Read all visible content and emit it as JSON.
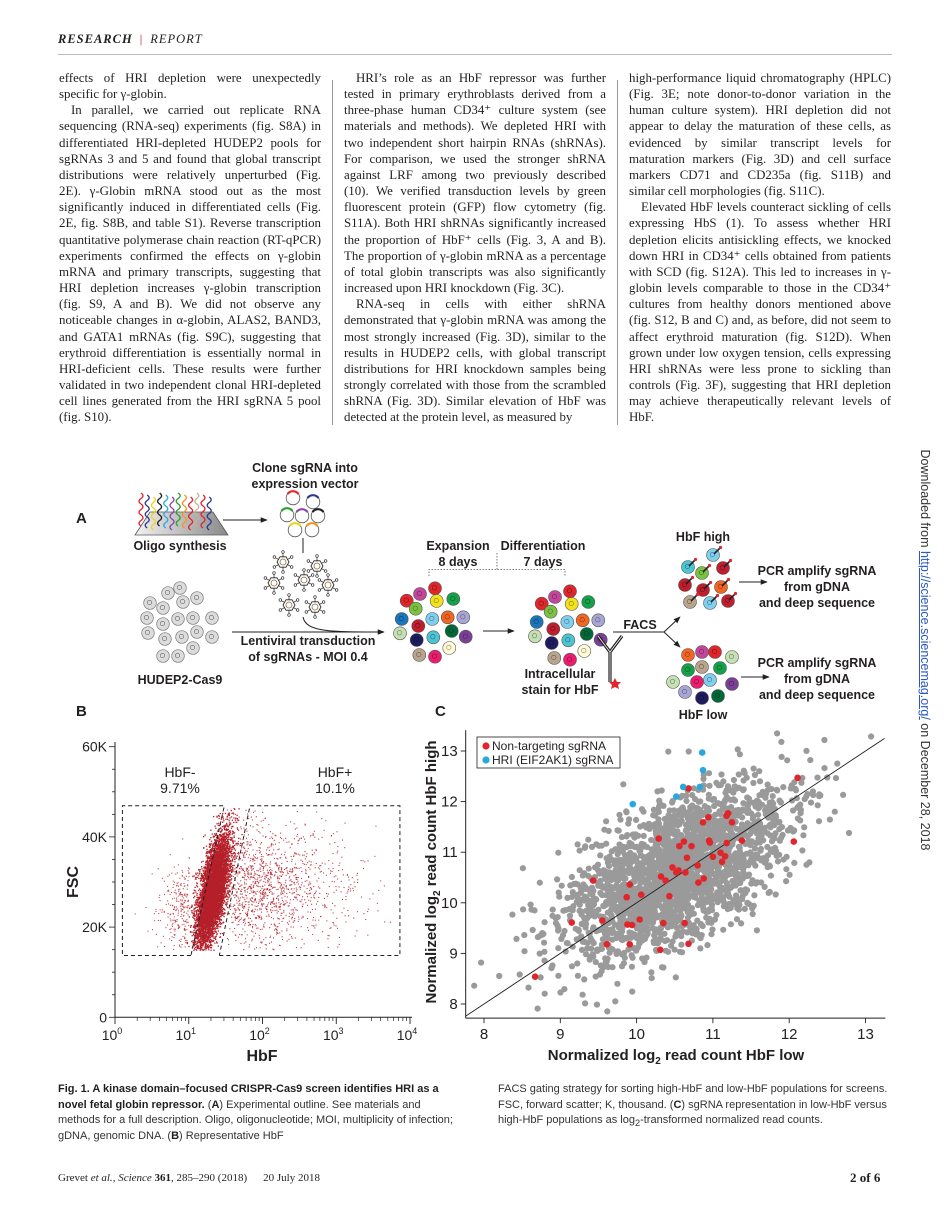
{
  "header": {
    "section": "RESEARCH",
    "separator": "|",
    "type": "REPORT"
  },
  "body": {
    "col1": [
      "effects of HRI depletion were unexpectedly specific for γ-globin.",
      "In parallel, we carried out replicate RNA sequencing (RNA-seq) experiments (fig. S8A) in differentiated HRI-depleted HUDEP2 pools for sgRNAs 3 and 5 and found that global transcript distributions were relatively unperturbed (Fig. 2E). γ-Globin mRNA stood out as the most significantly induced in differentiated cells (Fig. 2E, fig. S8B, and table S1). Reverse transcription quantitative polymerase chain reaction (RT-qPCR) experiments confirmed the effects on γ-globin mRNA and primary transcripts, suggesting that HRI depletion increases γ-globin transcription (fig. S9, A and B). We did not observe any noticeable changes in α-globin, ALAS2, BAND3, and GATA1 mRNAs (fig. S9C), suggesting that erythroid differentiation is essentially normal in HRI-deficient cells. These results were further validated in two independent clonal HRI-depleted cell lines generated from the HRI sgRNA 5 pool (fig. S10)."
    ],
    "col2": [
      "HRI’s role as an HbF repressor was further tested in primary erythroblasts derived from a three-phase human CD34⁺ culture system (see materials and methods). We depleted HRI with two independent short hairpin RNAs (shRNAs). For comparison, we used the stronger shRNA against LRF among two previously described (10). We verified transduction levels by green fluorescent protein (GFP) flow cytometry (fig. S11A). Both HRI shRNAs significantly increased the proportion of HbF⁺ cells (Fig. 3, A and B). The proportion of γ-globin mRNA as a percentage of total globin transcripts was also significantly increased upon HRI knockdown (Fig. 3C).",
      "RNA-seq in cells with either shRNA demonstrated that γ-globin mRNA was among the most strongly increased (Fig. 3D), similar to the results in HUDEP2 cells, with global transcript distributions for HRI knockdown samples being strongly correlated with those from the scrambled shRNA (Fig. 3D). Similar elevation of HbF was detected at the protein level, as measured by"
    ],
    "col3": [
      "high-performance liquid chromatography (HPLC) (Fig. 3E; note donor-to-donor variation in the human culture system). HRI depletion did not appear to delay the maturation of these cells, as evidenced by similar transcript levels for maturation markers (Fig. 3D) and cell surface markers CD71 and CD235a (fig. S11B) and similar cell morphologies (fig. S11C).",
      "Elevated HbF levels counteract sickling of cells expressing HbS (1). To assess whether HRI depletion elicits antisickling effects, we knocked down HRI in CD34⁺ cells obtained from patients with SCD (fig. S12A). This led to increases in γ-globin levels comparable to those in the CD34⁺ cultures from healthy donors mentioned above (fig. S12, B and C) and, as before, did not seem to affect erythroid maturation (fig. S12D). When grown under low oxygen tension, cells expressing HRI shRNAs were less prone to sickling than controls (Fig. 3F), suggesting that HRI depletion may achieve therapeutically relevant levels of HbF."
    ]
  },
  "side_note": {
    "prefix": "Downloaded from ",
    "url": "http://science.sciencemag.org/",
    "suffix": " on December 28, 2018"
  },
  "figure": {
    "panel_a": {
      "label": "A",
      "oligo": "Oligo synthesis",
      "clone_line1": "Clone sgRNA into",
      "clone_line2": "expression vector",
      "cells": "HUDEP2-Cas9",
      "transduction_line1": "Lentiviral transduction",
      "transduction_line2": "of sgRNAs - MOI 0.4",
      "expansion_line1": "Expansion",
      "expansion_line2": "8 days",
      "differentiation_line1": "Differentiation",
      "differentiation_line2": "7 days",
      "stain_line1": "Intracellular",
      "stain_line2": "stain for HbF",
      "facs": "FACS",
      "hbf_high": "HbF high",
      "hbf_low": "HbF low",
      "pcr_line1": "PCR amplify sgRNA",
      "pcr_line2": "from gDNA",
      "pcr_line3": "and deep sequence"
    },
    "panel_b_label": "B",
    "panel_c_label": "C"
  },
  "chart_data": [
    {
      "panel": "B",
      "type": "scatter",
      "xlabel": "HbF",
      "ylabel": "FSC",
      "x_scale": "log",
      "xlim": [
        1,
        10000
      ],
      "ylim": [
        0,
        60000
      ],
      "x_ticks": [
        {
          "base": "10",
          "exp": "0"
        },
        {
          "base": "10",
          "exp": "1"
        },
        {
          "base": "10",
          "exp": "2"
        },
        {
          "base": "10",
          "exp": "3"
        },
        {
          "base": "10",
          "exp": "4"
        }
      ],
      "y_ticks": [
        "0",
        "20K",
        "40K",
        "60K"
      ],
      "y_tick_values": [
        0,
        20000,
        40000,
        60000
      ],
      "point_color": "#b5202a",
      "gates": [
        {
          "name": "HbF-",
          "percent": "9.71%",
          "x_left": 1.26,
          "x_right_bottom": 10.7,
          "x_right_top": 30.4,
          "y_bottom": 13700,
          "y_top": 46900
        },
        {
          "name": "HbF+",
          "percent": "10.1%",
          "x_left_bottom": 26,
          "x_left_top": 67.7,
          "x_right": 7300,
          "y_bottom": 13700,
          "y_top": 46900
        }
      ]
    },
    {
      "panel": "C",
      "type": "scatter",
      "xlabel_prefix": "Normalized log",
      "xlabel_sub": "2",
      "xlabel_suffix": " read count HbF low",
      "ylabel_prefix": "Normalized log",
      "ylabel_sub": "2",
      "ylabel_suffix": " read count HbF high",
      "xlim": [
        7.76,
        13.26
      ],
      "ylim": [
        7.72,
        13.41
      ],
      "x_ticks": [
        "8",
        "9",
        "10",
        "11",
        "12",
        "13"
      ],
      "y_ticks": [
        "8",
        "9",
        "10",
        "11",
        "12",
        "13"
      ],
      "reference_line": "y = x",
      "legend_position": "top-left",
      "background_color": "#9a9a9a",
      "series": [
        {
          "name": "Non-targeting sgRNA",
          "color": "#e0262b",
          "points": [
            [
              12.11,
              12.47
            ],
            [
              10.68,
              12.26
            ],
            [
              10.94,
              11.69
            ],
            [
              11.2,
              11.77
            ],
            [
              11.18,
              11.72
            ],
            [
              10.87,
              11.59
            ],
            [
              11.25,
              11.59
            ],
            [
              12.06,
              11.21
            ],
            [
              10.29,
              11.27
            ],
            [
              11.38,
              11.23
            ],
            [
              10.95,
              11.23
            ],
            [
              10.96,
              11.19
            ],
            [
              10.62,
              11.21
            ],
            [
              10.56,
              11.12
            ],
            [
              10.72,
              11.12
            ],
            [
              11.18,
              11.18
            ],
            [
              11.1,
              10.99
            ],
            [
              10.66,
              10.89
            ],
            [
              11.0,
              10.91
            ],
            [
              11.16,
              10.92
            ],
            [
              11.12,
              10.81
            ],
            [
              10.47,
              10.7
            ],
            [
              10.55,
              10.64
            ],
            [
              10.52,
              10.6
            ],
            [
              10.64,
              10.6
            ],
            [
              10.8,
              10.74
            ],
            [
              10.32,
              10.52
            ],
            [
              10.38,
              10.44
            ],
            [
              9.43,
              10.44
            ],
            [
              9.91,
              10.36
            ],
            [
              10.88,
              10.48
            ],
            [
              10.81,
              10.4
            ],
            [
              10.06,
              10.16
            ],
            [
              9.87,
              10.11
            ],
            [
              10.43,
              10.13
            ],
            [
              9.55,
              9.65
            ],
            [
              9.15,
              9.61
            ],
            [
              10.04,
              9.67
            ],
            [
              9.88,
              9.57
            ],
            [
              9.94,
              9.56
            ],
            [
              10.35,
              9.6
            ],
            [
              10.63,
              9.6
            ],
            [
              9.61,
              9.18
            ],
            [
              9.91,
              9.18
            ],
            [
              10.68,
              9.19
            ],
            [
              10.31,
              9.07
            ],
            [
              8.67,
              8.54
            ]
          ]
        },
        {
          "name": "HRI (EIF2AK1) sgRNA",
          "color": "#29a8e0",
          "points": [
            [
              10.86,
              12.97
            ],
            [
              10.87,
              12.62
            ],
            [
              10.83,
              12.29
            ],
            [
              10.61,
              12.29
            ],
            [
              10.52,
              12.1
            ],
            [
              9.95,
              11.95
            ]
          ]
        }
      ]
    }
  ],
  "caption": {
    "col1_bold": "Fig. 1. A kinase domain–focused CRISPR-Cas9 screen identifies HRI as a novel fetal globin repressor.",
    "col1_a_open": " (",
    "col1_a": "A",
    "col1_text1": ") Experimental outline. See materials and methods for a full description. Oligo, oligonucleotide; MOI, multiplicity of infection; gDNA, genomic DNA. (",
    "col1_b": "B",
    "col1_text2": ") Representative HbF",
    "col2_text1": "FACS gating strategy for sorting high-HbF and low-HbF populations for screens. FSC, forward scatter; K, thousand. (",
    "col2_c": "C",
    "col2_text2": ") sgRNA representation in low-HbF versus high-HbF populations as log",
    "col2_sub": "2",
    "col2_text3": "-transformed normalized read counts."
  },
  "footer": {
    "authors": "Grevet ",
    "etal": "et al.",
    "journal": ", Science ",
    "volume": "361",
    "pages": ", 285–290 (2018)",
    "date": "20 July 2018",
    "page": "2 of 6"
  }
}
